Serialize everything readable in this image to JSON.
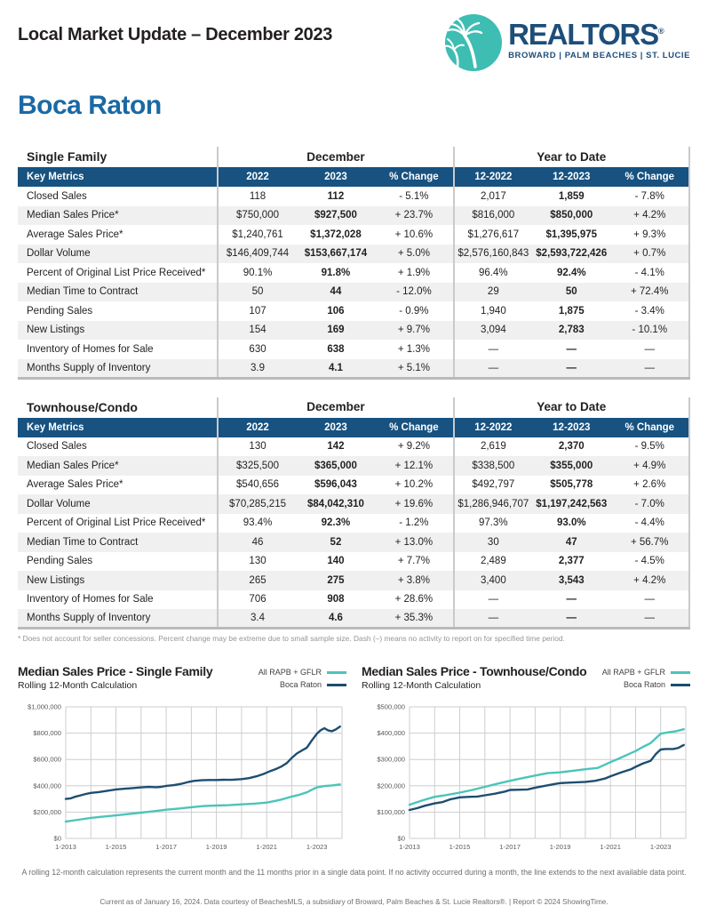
{
  "header": {
    "title": "Local Market Update – December 2023",
    "logo": {
      "brand": "REALTORS",
      "registered": "®",
      "tagline": "BROWARD | PALM BEACHES | ST. LUCIE",
      "circle_color": "#3ebdb2",
      "brand_color": "#1d4e79"
    }
  },
  "city": "Boca Raton",
  "tables": [
    {
      "name": "Single Family",
      "period_label": "December",
      "ytd_label": "Year to Date",
      "key_metrics_label": "Key Metrics",
      "col_headers": [
        "2022",
        "2023",
        "% Change",
        "12-2022",
        "12-2023",
        "% Change"
      ],
      "rows": [
        {
          "metric": "Closed Sales",
          "values": [
            "118",
            "112",
            "- 5.1%",
            "2,017",
            "1,859",
            "- 7.8%"
          ]
        },
        {
          "metric": "Median Sales Price*",
          "values": [
            "$750,000",
            "$927,500",
            "+ 23.7%",
            "$816,000",
            "$850,000",
            "+ 4.2%"
          ]
        },
        {
          "metric": "Average Sales Price*",
          "values": [
            "$1,240,761",
            "$1,372,028",
            "+ 10.6%",
            "$1,276,617",
            "$1,395,975",
            "+ 9.3%"
          ]
        },
        {
          "metric": "Dollar Volume",
          "values": [
            "$146,409,744",
            "$153,667,174",
            "+ 5.0%",
            "$2,576,160,843",
            "$2,593,722,426",
            "+ 0.7%"
          ]
        },
        {
          "metric": "Percent of Original List Price Received*",
          "values": [
            "90.1%",
            "91.8%",
            "+ 1.9%",
            "96.4%",
            "92.4%",
            "- 4.1%"
          ]
        },
        {
          "metric": "Median Time to Contract",
          "values": [
            "50",
            "44",
            "- 12.0%",
            "29",
            "50",
            "+ 72.4%"
          ]
        },
        {
          "metric": "Pending Sales",
          "values": [
            "107",
            "106",
            "- 0.9%",
            "1,940",
            "1,875",
            "- 3.4%"
          ]
        },
        {
          "metric": "New Listings",
          "values": [
            "154",
            "169",
            "+ 9.7%",
            "3,094",
            "2,783",
            "- 10.1%"
          ]
        },
        {
          "metric": "Inventory of Homes for Sale",
          "values": [
            "630",
            "638",
            "+ 1.3%",
            "—",
            "—",
            "—"
          ]
        },
        {
          "metric": "Months Supply of Inventory",
          "values": [
            "3.9",
            "4.1",
            "+ 5.1%",
            "—",
            "—",
            "—"
          ]
        }
      ]
    },
    {
      "name": "Townhouse/Condo",
      "period_label": "December",
      "ytd_label": "Year to Date",
      "key_metrics_label": "Key Metrics",
      "col_headers": [
        "2022",
        "2023",
        "% Change",
        "12-2022",
        "12-2023",
        "% Change"
      ],
      "rows": [
        {
          "metric": "Closed Sales",
          "values": [
            "130",
            "142",
            "+ 9.2%",
            "2,619",
            "2,370",
            "- 9.5%"
          ]
        },
        {
          "metric": "Median Sales Price*",
          "values": [
            "$325,500",
            "$365,000",
            "+ 12.1%",
            "$338,500",
            "$355,000",
            "+ 4.9%"
          ]
        },
        {
          "metric": "Average Sales Price*",
          "values": [
            "$540,656",
            "$596,043",
            "+ 10.2%",
            "$492,797",
            "$505,778",
            "+ 2.6%"
          ]
        },
        {
          "metric": "Dollar Volume",
          "values": [
            "$70,285,215",
            "$84,042,310",
            "+ 19.6%",
            "$1,286,946,707",
            "$1,197,242,563",
            "- 7.0%"
          ]
        },
        {
          "metric": "Percent of Original List Price Received*",
          "values": [
            "93.4%",
            "92.3%",
            "- 1.2%",
            "97.3%",
            "93.0%",
            "- 4.4%"
          ]
        },
        {
          "metric": "Median Time to Contract",
          "values": [
            "46",
            "52",
            "+ 13.0%",
            "30",
            "47",
            "+ 56.7%"
          ]
        },
        {
          "metric": "Pending Sales",
          "values": [
            "130",
            "140",
            "+ 7.7%",
            "2,489",
            "2,377",
            "- 4.5%"
          ]
        },
        {
          "metric": "New Listings",
          "values": [
            "265",
            "275",
            "+ 3.8%",
            "3,400",
            "3,543",
            "+ 4.2%"
          ]
        },
        {
          "metric": "Inventory of Homes for Sale",
          "values": [
            "706",
            "908",
            "+ 28.6%",
            "—",
            "—",
            "—"
          ]
        },
        {
          "metric": "Months Supply of Inventory",
          "values": [
            "3.4",
            "4.6",
            "+ 35.3%",
            "—",
            "—",
            "—"
          ]
        }
      ]
    }
  ],
  "table_footnote": "* Does not account for seller concessions. Percent change may be extreme due to small sample size. Dash (–) means no activity to report on for specified time period.",
  "rolling_note": "A rolling 12-month calculation represents the current month and the 11 months prior in a single data point. If no activity occurred during a month, the line extends to the next available data point.",
  "credit_line": "Current as of January 16, 2024. Data courtesy of BeachesMLS, a subsidiary of Broward, Palm Beaches & St. Lucie Realtors®. | Report © 2024 ShowingTime.",
  "chart_data": [
    {
      "type": "line",
      "title": "Median Sales Price - Single Family",
      "subtitle": "Rolling 12-Month Calculation",
      "legend_position": "top-right",
      "grid": true,
      "ylim": [
        0,
        1000000
      ],
      "ytick": 200000,
      "xlim": [
        2013,
        2024
      ],
      "xticks": [
        {
          "x": 2013,
          "label": "1-2013"
        },
        {
          "x": 2015,
          "label": "1-2015"
        },
        {
          "x": 2017,
          "label": "1-2017"
        },
        {
          "x": 2019,
          "label": "1-2019"
        },
        {
          "x": 2021,
          "label": "1-2021"
        },
        {
          "x": 2023,
          "label": "1-2023"
        }
      ],
      "series": [
        {
          "name": "All RAPB + GFLR",
          "color": "#4cc4b9",
          "points": [
            [
              2013,
              128000
            ],
            [
              2013.5,
              142000
            ],
            [
              2014,
              156000
            ],
            [
              2014.5,
              166000
            ],
            [
              2015,
              175000
            ],
            [
              2015.5,
              185000
            ],
            [
              2016,
              196000
            ],
            [
              2016.5,
              207000
            ],
            [
              2017,
              218000
            ],
            [
              2017.5,
              227000
            ],
            [
              2018,
              237000
            ],
            [
              2018.5,
              246000
            ],
            [
              2019,
              250000
            ],
            [
              2019.5,
              253000
            ],
            [
              2020,
              259000
            ],
            [
              2020.5,
              264000
            ],
            [
              2021,
              272000
            ],
            [
              2021.3,
              283000
            ],
            [
              2021.6,
              296000
            ],
            [
              2022,
              318000
            ],
            [
              2022.3,
              332000
            ],
            [
              2022.6,
              350000
            ],
            [
              2022.8,
              370000
            ],
            [
              2023,
              388000
            ],
            [
              2023.3,
              398000
            ],
            [
              2023.6,
              403000
            ],
            [
              2023.92,
              410000
            ]
          ]
        },
        {
          "name": "Boca Raton",
          "color": "#1d4d70",
          "points": [
            [
              2013,
              300000
            ],
            [
              2013.2,
              305000
            ],
            [
              2013.4,
              318000
            ],
            [
              2013.6,
              328000
            ],
            [
              2013.8,
              338000
            ],
            [
              2014,
              346000
            ],
            [
              2014.3,
              352000
            ],
            [
              2014.6,
              360000
            ],
            [
              2015,
              372000
            ],
            [
              2015.3,
              377000
            ],
            [
              2015.6,
              381000
            ],
            [
              2016,
              388000
            ],
            [
              2016.3,
              391000
            ],
            [
              2016.6,
              389000
            ],
            [
              2016.8,
              392000
            ],
            [
              2017,
              399000
            ],
            [
              2017.3,
              405000
            ],
            [
              2017.6,
              415000
            ],
            [
              2017.9,
              430000
            ],
            [
              2018.1,
              437000
            ],
            [
              2018.4,
              442000
            ],
            [
              2018.7,
              444000
            ],
            [
              2019,
              444000
            ],
            [
              2019.3,
              446000
            ],
            [
              2019.6,
              445000
            ],
            [
              2020,
              451000
            ],
            [
              2020.3,
              458000
            ],
            [
              2020.6,
              472000
            ],
            [
              2020.9,
              492000
            ],
            [
              2021.1,
              508000
            ],
            [
              2021.4,
              530000
            ],
            [
              2021.6,
              548000
            ],
            [
              2021.8,
              572000
            ],
            [
              2022,
              612000
            ],
            [
              2022.2,
              645000
            ],
            [
              2022.4,
              668000
            ],
            [
              2022.6,
              690000
            ],
            [
              2022.8,
              745000
            ],
            [
              2023,
              795000
            ],
            [
              2023.15,
              822000
            ],
            [
              2023.3,
              838000
            ],
            [
              2023.45,
              820000
            ],
            [
              2023.6,
              815000
            ],
            [
              2023.75,
              828000
            ],
            [
              2023.92,
              850000
            ]
          ]
        }
      ]
    },
    {
      "type": "line",
      "title": "Median Sales Price - Townhouse/Condo",
      "subtitle": "Rolling 12-Month Calculation",
      "legend_position": "top-right",
      "grid": true,
      "ylim": [
        0,
        500000
      ],
      "ytick": 100000,
      "xlim": [
        2013,
        2024
      ],
      "xticks": [
        {
          "x": 2013,
          "label": "1-2013"
        },
        {
          "x": 2015,
          "label": "1-2015"
        },
        {
          "x": 2017,
          "label": "1-2017"
        },
        {
          "x": 2019,
          "label": "1-2019"
        },
        {
          "x": 2021,
          "label": "1-2021"
        },
        {
          "x": 2023,
          "label": "1-2023"
        }
      ],
      "series": [
        {
          "name": "All RAPB + GFLR",
          "color": "#4cc4b9",
          "points": [
            [
              2013,
              128000
            ],
            [
              2013.5,
              144000
            ],
            [
              2014,
              158000
            ],
            [
              2014.3,
              162000
            ],
            [
              2014.6,
              167000
            ],
            [
              2015,
              174000
            ],
            [
              2015.5,
              184000
            ],
            [
              2016,
              196000
            ],
            [
              2016.5,
              208000
            ],
            [
              2017,
              219000
            ],
            [
              2017.5,
              229000
            ],
            [
              2018,
              239000
            ],
            [
              2018.5,
              248000
            ],
            [
              2019,
              251000
            ],
            [
              2019.5,
              257000
            ],
            [
              2020,
              263000
            ],
            [
              2020.5,
              268000
            ],
            [
              2021,
              290000
            ],
            [
              2021.3,
              302000
            ],
            [
              2021.6,
              315000
            ],
            [
              2022,
              332000
            ],
            [
              2022.3,
              348000
            ],
            [
              2022.6,
              362000
            ],
            [
              2022.8,
              380000
            ],
            [
              2023,
              398000
            ],
            [
              2023.3,
              403000
            ],
            [
              2023.6,
              407000
            ],
            [
              2023.92,
              415000
            ]
          ]
        },
        {
          "name": "Boca Raton",
          "color": "#1d4d70",
          "points": [
            [
              2013,
              108000
            ],
            [
              2013.3,
              115000
            ],
            [
              2013.6,
              124000
            ],
            [
              2014,
              133000
            ],
            [
              2014.3,
              138000
            ],
            [
              2014.6,
              148000
            ],
            [
              2014.9,
              154000
            ],
            [
              2015,
              156000
            ],
            [
              2015.4,
              158000
            ],
            [
              2015.7,
              159000
            ],
            [
              2016,
              164000
            ],
            [
              2016.4,
              170000
            ],
            [
              2016.8,
              178000
            ],
            [
              2017,
              184000
            ],
            [
              2017.4,
              185000
            ],
            [
              2017.7,
              186000
            ],
            [
              2018,
              193000
            ],
            [
              2018.4,
              200000
            ],
            [
              2018.8,
              207000
            ],
            [
              2019,
              210000
            ],
            [
              2019.4,
              212000
            ],
            [
              2019.8,
              214000
            ],
            [
              2020,
              215000
            ],
            [
              2020.4,
              219000
            ],
            [
              2020.8,
              228000
            ],
            [
              2021,
              236000
            ],
            [
              2021.4,
              250000
            ],
            [
              2021.8,
              262000
            ],
            [
              2022,
              272000
            ],
            [
              2022.3,
              285000
            ],
            [
              2022.6,
              295000
            ],
            [
              2022.8,
              320000
            ],
            [
              2023,
              338000
            ],
            [
              2023.2,
              340000
            ],
            [
              2023.5,
              340000
            ],
            [
              2023.7,
              344000
            ],
            [
              2023.92,
              355000
            ]
          ]
        }
      ]
    }
  ]
}
